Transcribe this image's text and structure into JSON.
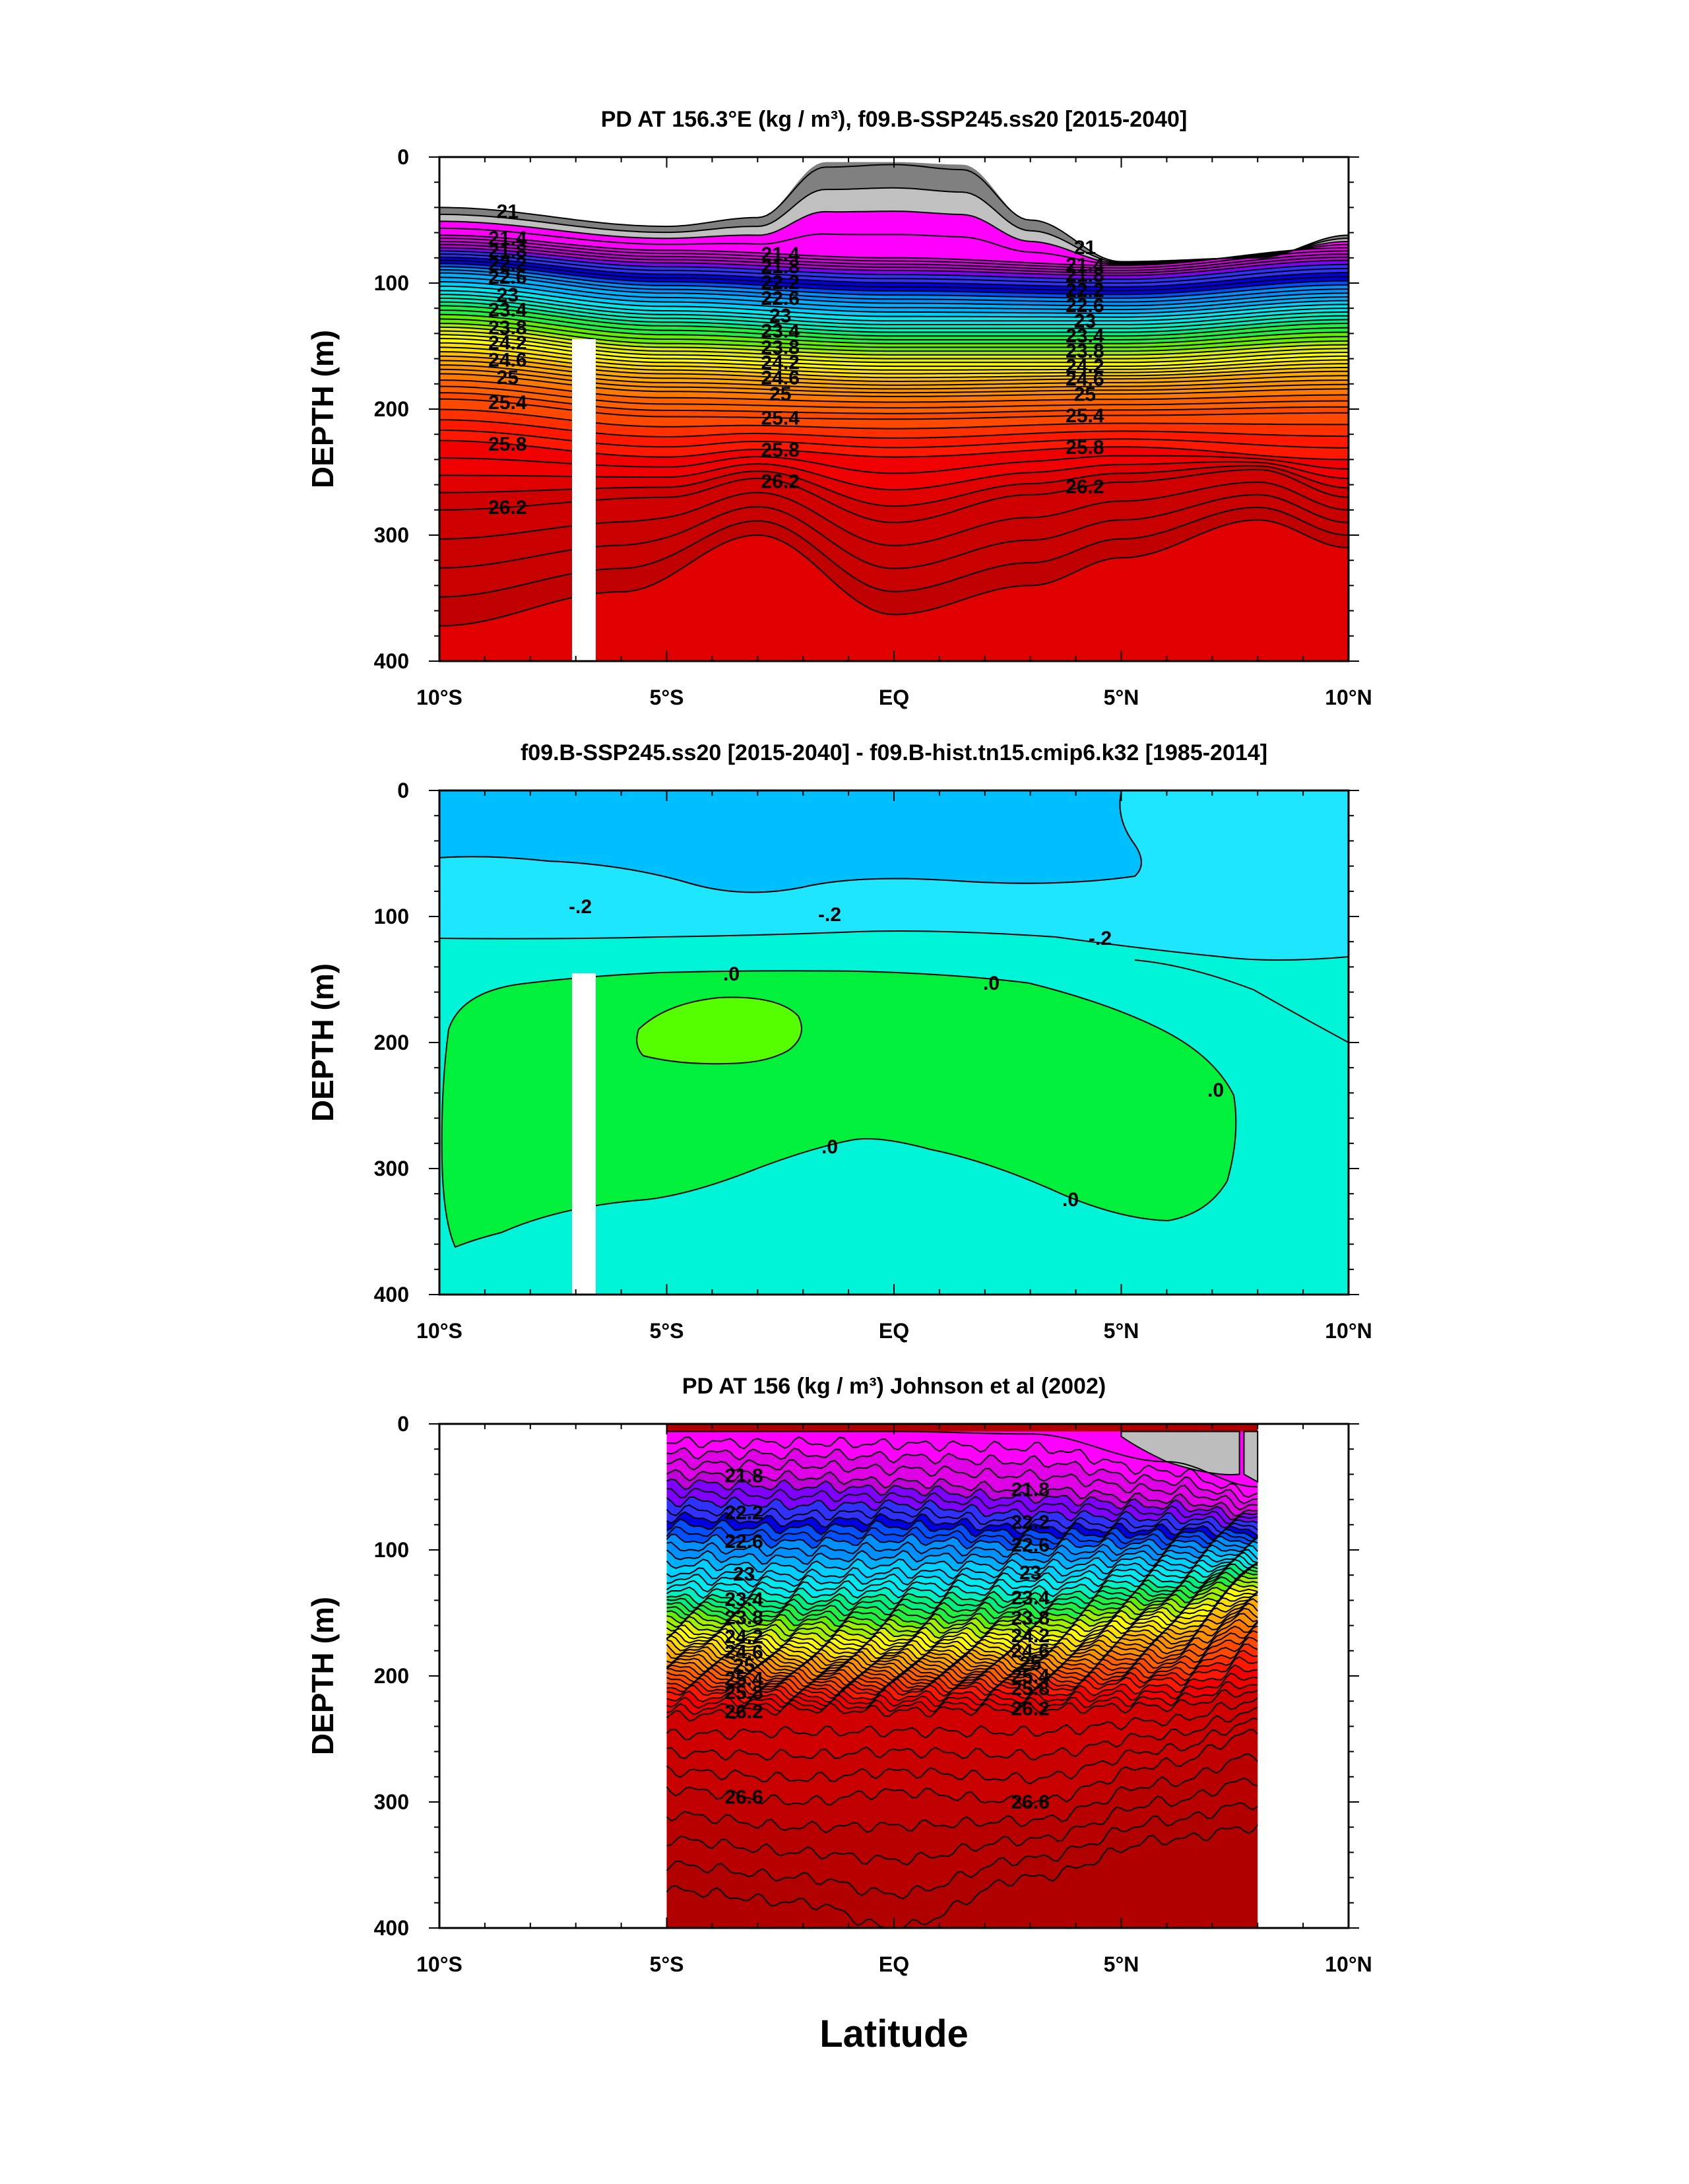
{
  "figure": {
    "xlabel": "Latitude"
  },
  "chart_data": [
    {
      "type": "heatmap",
      "title": "PD AT 156.3°E (kg / m³), f09.B-SSP245.ss20 [2015-2040]",
      "ylabel": "DEPTH (m)",
      "xlabel": "",
      "x_ticks": [
        "10°S",
        "5°S",
        "EQ",
        "5°N",
        "10°N"
      ],
      "y_ticks": [
        "0",
        "100",
        "200",
        "300",
        "400"
      ],
      "xlim": [
        -10,
        10
      ],
      "ylim": [
        400,
        0
      ],
      "contour_interval": 0.2,
      "isopycnals_depth_m": [
        {
          "sigma": 21.0,
          "x": [
            -10,
            -5,
            -3,
            -1.5,
            0,
            1.5,
            3,
            5,
            8,
            10
          ],
          "depth": [
            40,
            55,
            48,
            8,
            6,
            10,
            50,
            83,
            80,
            62
          ]
        },
        {
          "sigma": 21.4,
          "x": [
            -10,
            -5,
            0,
            5,
            10
          ],
          "depth": [
            62,
            74,
            80,
            86,
            72
          ]
        },
        {
          "sigma": 21.8,
          "x": [
            -10,
            -5,
            0,
            5,
            10
          ],
          "depth": [
            72,
            84,
            90,
            94,
            82
          ]
        },
        {
          "sigma": 22.2,
          "x": [
            -10,
            -5,
            0,
            5,
            10
          ],
          "depth": [
            82,
            96,
            103,
            106,
            95
          ]
        },
        {
          "sigma": 22.6,
          "x": [
            -10,
            -5,
            0,
            5,
            10
          ],
          "depth": [
            92,
            108,
            116,
            118,
            108
          ]
        },
        {
          "sigma": 23.0,
          "x": [
            -10,
            -5,
            0,
            5,
            10
          ],
          "depth": [
            106,
            122,
            130,
            130,
            120
          ]
        },
        {
          "sigma": 23.4,
          "x": [
            -10,
            -5,
            0,
            5,
            10
          ],
          "depth": [
            118,
            134,
            142,
            142,
            132
          ]
        },
        {
          "sigma": 23.8,
          "x": [
            -10,
            -5,
            0,
            5,
            10
          ],
          "depth": [
            132,
            148,
            154,
            154,
            146
          ]
        },
        {
          "sigma": 24.2,
          "x": [
            -10,
            -5,
            0,
            5,
            10
          ],
          "depth": [
            144,
            160,
            166,
            166,
            158
          ]
        },
        {
          "sigma": 24.6,
          "x": [
            -10,
            -5,
            0,
            5,
            10
          ],
          "depth": [
            158,
            172,
            178,
            176,
            170
          ]
        },
        {
          "sigma": 25.0,
          "x": [
            -10,
            -5,
            0,
            5,
            10
          ],
          "depth": [
            172,
            186,
            190,
            188,
            184
          ]
        },
        {
          "sigma": 25.4,
          "x": [
            -10,
            -5,
            0,
            5,
            10
          ],
          "depth": [
            192,
            206,
            208,
            205,
            203
          ]
        },
        {
          "sigma": 25.8,
          "x": [
            -10,
            -5,
            -3,
            0,
            5,
            10
          ],
          "depth": [
            225,
            238,
            232,
            238,
            230,
            240
          ]
        },
        {
          "sigma": 26.2,
          "x": [
            -10,
            -5,
            -3,
            0,
            3,
            5,
            8,
            10
          ],
          "depth": [
            280,
            270,
            255,
            290,
            268,
            258,
            248,
            270
          ]
        },
        {
          "sigma": 26.6,
          "x": [
            -10,
            -6,
            -3,
            0,
            3,
            5,
            8,
            10
          ],
          "depth": [
            372,
            345,
            300,
            363,
            340,
            318,
            288,
            310
          ]
        }
      ],
      "contour_labels": [
        "21",
        "21.4",
        "21.8",
        "22.2",
        "22.6",
        "23",
        "23.4",
        "23.8",
        "24.2",
        "24.6",
        "25",
        "25.4",
        "25.8",
        "26.2"
      ],
      "masked_column_lat": [
        -7.1,
        -6.6
      ],
      "masked_column_depth": [
        145,
        400
      ]
    },
    {
      "type": "heatmap",
      "title": "f09.B-SSP245.ss20 [2015-2040] - f09.B-hist.tn15.cmip6.k32 [1985-2014]",
      "ylabel": "DEPTH (m)",
      "xlabel": "",
      "x_ticks": [
        "10°S",
        "5°S",
        "EQ",
        "5°N",
        "10°N"
      ],
      "y_ticks": [
        "0",
        "100",
        "200",
        "300",
        "400"
      ],
      "xlim": [
        -10,
        10
      ],
      "ylim": [
        400,
        0
      ],
      "contour_levels": [
        -0.4,
        -0.2,
        0.0
      ],
      "contour_labels": [
        "-.2",
        "-.2",
        "-.2",
        ".0",
        ".0",
        ".0",
        ".0",
        ".0"
      ],
      "masked_column_lat": [
        -7.1,
        -6.6
      ],
      "masked_column_depth": [
        145,
        400
      ]
    },
    {
      "type": "heatmap",
      "title": "PD AT 156 (kg / m³) Johnson et al (2002)",
      "ylabel": "DEPTH (m)",
      "xlabel": "Latitude",
      "x_ticks": [
        "10°S",
        "5°S",
        "EQ",
        "5°N",
        "10°N"
      ],
      "y_ticks": [
        "0",
        "100",
        "200",
        "300",
        "400"
      ],
      "xlim": [
        -10,
        10
      ],
      "ylim": [
        400,
        0
      ],
      "data_extent_lat": [
        -5,
        8
      ],
      "contour_interval": 0.2,
      "contour_labels": [
        "21.8",
        "22.2",
        "22.6",
        "23",
        "23.4",
        "23.8",
        "24.2",
        "24.6",
        "25",
        "25.4",
        "25.8",
        "26.2",
        "26.6",
        "21.8",
        "22.2",
        "22.6",
        "23",
        "23.4",
        "23.8",
        "24.2",
        "24.6",
        "25",
        "25.4",
        "25.8",
        "26.2",
        "26.6"
      ]
    }
  ]
}
